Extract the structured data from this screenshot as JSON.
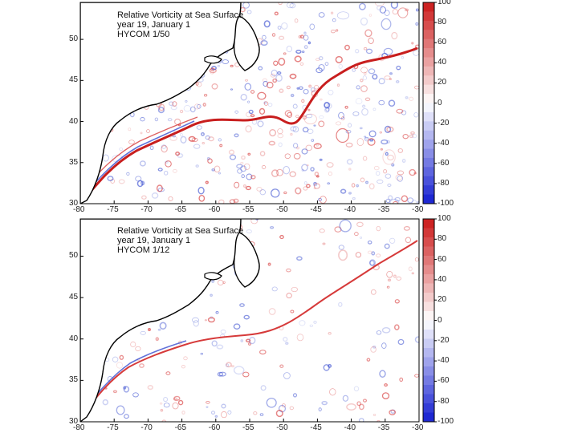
{
  "colors": {
    "positive": "#d42a2a",
    "negative": "#3a4fd0",
    "land": "#ffffff",
    "coast": "#000000"
  },
  "panels": [
    {
      "title": "Relative Vorticity at Sea Surface",
      "date": "year 19, January  1",
      "model": "HYCOM 1/50",
      "x_ticks": [
        "-80",
        "-75",
        "-70",
        "-65",
        "-60",
        "-55",
        "-50",
        "-45",
        "-40",
        "-35",
        "-30"
      ],
      "y_ticks": [
        "50",
        "45",
        "40",
        "35",
        "30"
      ],
      "colorbar_ticks": [
        "100",
        "80",
        "60",
        "40",
        "20",
        "0",
        "-20",
        "-40",
        "-60",
        "-80",
        "-100"
      ]
    },
    {
      "title": "Relative Vorticity at Sea Surface",
      "date": "year 19, January  1",
      "model": "HYCOM 1/12",
      "x_ticks": [
        "-80",
        "-75",
        "-70",
        "-65",
        "-60",
        "-55",
        "-50",
        "-45",
        "-40",
        "-35",
        "-30"
      ],
      "y_ticks": [
        "50",
        "45",
        "40",
        "35",
        "30"
      ],
      "colorbar_ticks": [
        "100",
        "80",
        "60",
        "40",
        "20",
        "0",
        "-20",
        "-40",
        "-60",
        "-80",
        "-100"
      ]
    }
  ]
}
